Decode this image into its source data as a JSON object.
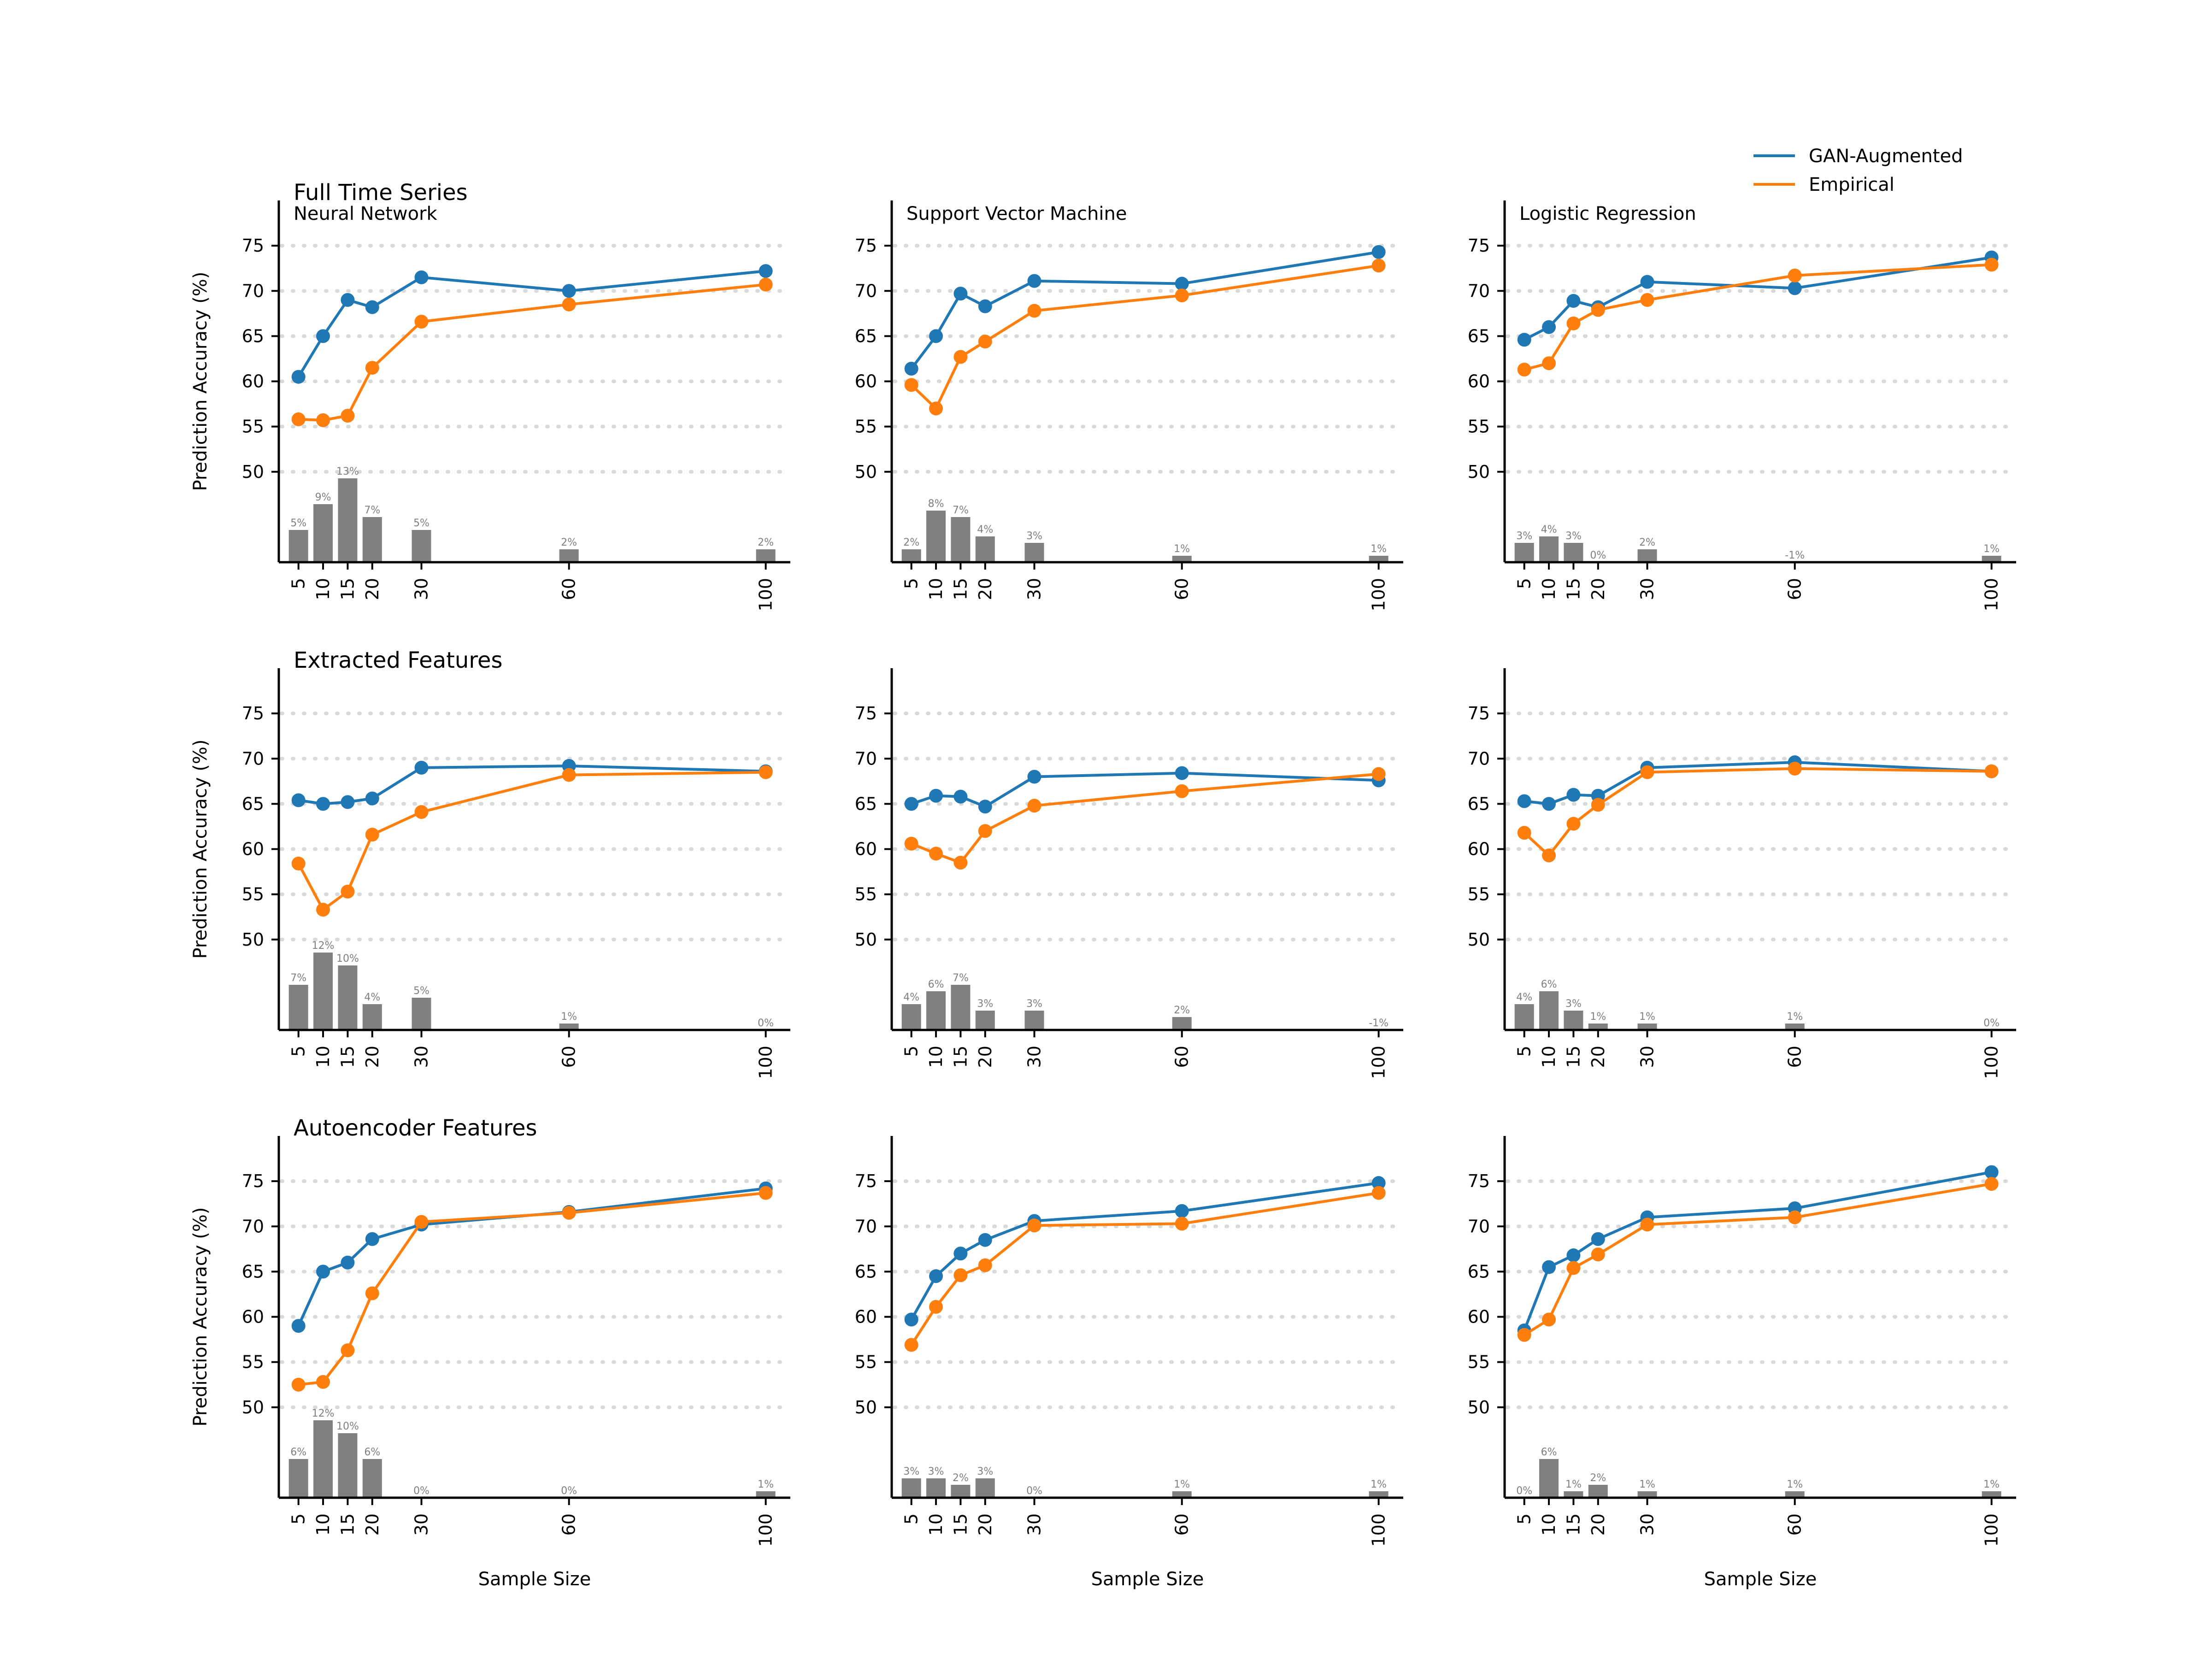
{
  "colors": {
    "gan": "#1f77b4",
    "empirical": "#ff7f0e",
    "bar": "#808080",
    "bar_label": "#7f7f7f",
    "grid": "#d9d9d9",
    "axis": "#000000"
  },
  "legend": {
    "placement": "top-right",
    "items": [
      "GAN-Augmented",
      "Empirical"
    ]
  },
  "axes": {
    "x_ticks": [
      5,
      10,
      15,
      20,
      30,
      60,
      100
    ],
    "y_ticks": [
      50,
      55,
      60,
      65,
      70,
      75
    ],
    "ylabel": "Prediction Accuracy (%)",
    "xlabel": "Sample Size",
    "grid": "horizontal dotted at y ticks",
    "x_tick_rotation": "vertical"
  },
  "row_titles": [
    "Full Time Series",
    "Extracted Features",
    "Autoencoder Features"
  ],
  "column_titles": [
    "Neural Network",
    "Support Vector Machine",
    "Logistic Regression"
  ],
  "chart_data": [
    {
      "type": "line",
      "row": 0,
      "col": 0,
      "title": "Full Time Series",
      "subtitle": "Neural Network",
      "x": [
        5,
        10,
        15,
        20,
        30,
        60,
        100
      ],
      "series": [
        {
          "name": "GAN-Augmented",
          "values": [
            60.5,
            65.0,
            69.0,
            68.2,
            71.5,
            70.0,
            72.2
          ]
        },
        {
          "name": "Empirical",
          "values": [
            55.8,
            55.7,
            56.2,
            61.5,
            66.6,
            68.5,
            70.7
          ]
        }
      ],
      "bar_labels": [
        "5%",
        "9%",
        "13%",
        "7%",
        "5%",
        "2%",
        "2%"
      ],
      "bar_values": [
        5,
        9,
        13,
        7,
        5,
        2,
        2
      ]
    },
    {
      "type": "line",
      "row": 0,
      "col": 1,
      "subtitle": "Support Vector Machine",
      "x": [
        5,
        10,
        15,
        20,
        30,
        60,
        100
      ],
      "series": [
        {
          "name": "GAN-Augmented",
          "values": [
            61.4,
            65.0,
            69.7,
            68.3,
            71.1,
            70.8,
            74.3
          ]
        },
        {
          "name": "Empirical",
          "values": [
            59.6,
            57.0,
            62.7,
            64.4,
            67.8,
            69.5,
            72.8
          ]
        }
      ],
      "bar_labels": [
        "2%",
        "8%",
        "7%",
        "4%",
        "3%",
        "1%",
        "1%"
      ],
      "bar_values": [
        2,
        8,
        7,
        4,
        3,
        1,
        1
      ]
    },
    {
      "type": "line",
      "row": 0,
      "col": 2,
      "subtitle": "Logistic Regression",
      "x": [
        5,
        10,
        15,
        20,
        30,
        60,
        100
      ],
      "series": [
        {
          "name": "GAN-Augmented",
          "values": [
            64.6,
            66.0,
            68.9,
            68.2,
            71.0,
            70.3,
            73.7
          ]
        },
        {
          "name": "Empirical",
          "values": [
            61.3,
            62.0,
            66.4,
            67.9,
            69.0,
            71.7,
            72.9
          ]
        }
      ],
      "bar_labels": [
        "3%",
        "4%",
        "3%",
        "0%",
        "2%",
        "-1%",
        "1%"
      ],
      "bar_values": [
        3,
        4,
        3,
        0,
        2,
        -1,
        1
      ]
    },
    {
      "type": "line",
      "row": 1,
      "col": 0,
      "title": "Extracted Features",
      "x": [
        5,
        10,
        15,
        20,
        30,
        60,
        100
      ],
      "series": [
        {
          "name": "GAN-Augmented",
          "values": [
            65.4,
            65.0,
            65.2,
            65.6,
            69.0,
            69.2,
            68.6
          ]
        },
        {
          "name": "Empirical",
          "values": [
            58.4,
            53.3,
            55.3,
            61.6,
            64.1,
            68.2,
            68.5
          ]
        }
      ],
      "bar_labels": [
        "7%",
        "12%",
        "10%",
        "4%",
        "5%",
        "1%",
        "0%"
      ],
      "bar_values": [
        7,
        12,
        10,
        4,
        5,
        1,
        0
      ]
    },
    {
      "type": "line",
      "row": 1,
      "col": 1,
      "x": [
        5,
        10,
        15,
        20,
        30,
        60,
        100
      ],
      "series": [
        {
          "name": "GAN-Augmented",
          "values": [
            65.0,
            65.9,
            65.8,
            64.7,
            68.0,
            68.4,
            67.6
          ]
        },
        {
          "name": "Empirical",
          "values": [
            60.6,
            59.5,
            58.5,
            62.0,
            64.8,
            66.4,
            68.3
          ]
        }
      ],
      "bar_labels": [
        "4%",
        "6%",
        "7%",
        "3%",
        "3%",
        "2%",
        "-1%"
      ],
      "bar_values": [
        4,
        6,
        7,
        3,
        3,
        2,
        -1
      ]
    },
    {
      "type": "line",
      "row": 1,
      "col": 2,
      "x": [
        5,
        10,
        15,
        20,
        30,
        60,
        100
      ],
      "series": [
        {
          "name": "GAN-Augmented",
          "values": [
            65.3,
            65.0,
            66.0,
            65.9,
            69.0,
            69.6,
            68.6
          ]
        },
        {
          "name": "Empirical",
          "values": [
            61.8,
            59.3,
            62.8,
            64.9,
            68.5,
            68.9,
            68.6
          ]
        }
      ],
      "bar_labels": [
        "4%",
        "6%",
        "3%",
        "1%",
        "1%",
        "1%",
        "0%"
      ],
      "bar_values": [
        4,
        6,
        3,
        1,
        1,
        1,
        0
      ]
    },
    {
      "type": "line",
      "row": 2,
      "col": 0,
      "title": "Autoencoder Features",
      "x": [
        5,
        10,
        15,
        20,
        30,
        60,
        100
      ],
      "series": [
        {
          "name": "GAN-Augmented",
          "values": [
            59.0,
            65.0,
            66.0,
            68.6,
            70.2,
            71.6,
            74.2
          ]
        },
        {
          "name": "Empirical",
          "values": [
            52.5,
            52.8,
            56.3,
            62.6,
            70.5,
            71.5,
            73.7
          ]
        }
      ],
      "bar_labels": [
        "6%",
        "12%",
        "10%",
        "6%",
        "0%",
        "0%",
        "1%"
      ],
      "bar_values": [
        6,
        12,
        10,
        6,
        0,
        0,
        1
      ]
    },
    {
      "type": "line",
      "row": 2,
      "col": 1,
      "x": [
        5,
        10,
        15,
        20,
        30,
        60,
        100
      ],
      "series": [
        {
          "name": "GAN-Augmented",
          "values": [
            59.7,
            64.5,
            67.0,
            68.5,
            70.6,
            71.7,
            74.8
          ]
        },
        {
          "name": "Empirical",
          "values": [
            56.9,
            61.1,
            64.6,
            65.7,
            70.1,
            70.3,
            73.7
          ]
        }
      ],
      "bar_labels": [
        "3%",
        "3%",
        "2%",
        "3%",
        "0%",
        "1%",
        "1%"
      ],
      "bar_values": [
        3,
        3,
        2,
        3,
        0,
        1,
        1
      ]
    },
    {
      "type": "line",
      "row": 2,
      "col": 2,
      "x": [
        5,
        10,
        15,
        20,
        30,
        60,
        100
      ],
      "series": [
        {
          "name": "GAN-Augmented",
          "values": [
            58.5,
            65.5,
            66.8,
            68.6,
            71.0,
            72.0,
            76.0
          ]
        },
        {
          "name": "Empirical",
          "values": [
            58.0,
            59.7,
            65.4,
            66.9,
            70.2,
            71.0,
            74.7
          ]
        }
      ],
      "bar_labels": [
        "0%",
        "6%",
        "1%",
        "2%",
        "1%",
        "1%",
        "1%"
      ],
      "bar_values": [
        0,
        6,
        1,
        2,
        1,
        1,
        1
      ]
    }
  ]
}
